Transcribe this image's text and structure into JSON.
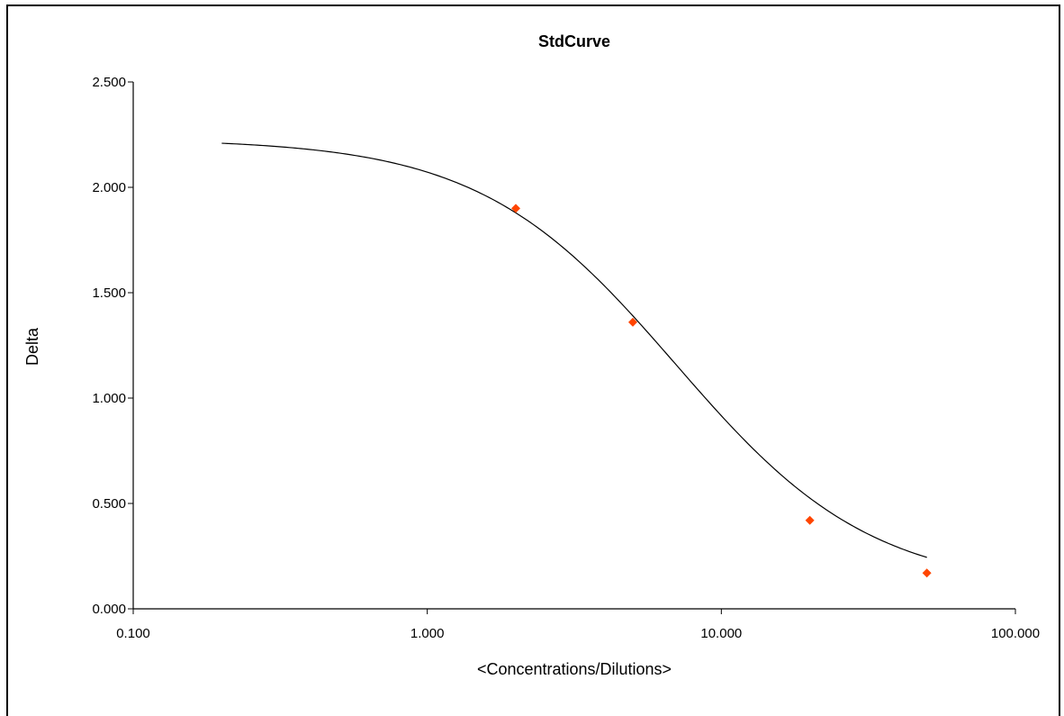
{
  "chart_data": {
    "type": "scatter",
    "title": "StdCurve",
    "xlabel": "<Concentrations/Dilutions>",
    "ylabel": "Delta",
    "x_scale": "log",
    "xlim": [
      0.1,
      100
    ],
    "ylim": [
      0,
      2.5
    ],
    "x_ticks": [
      "0.100",
      "1.000",
      "10.000",
      "100.000"
    ],
    "y_ticks": [
      "0.000",
      "0.500",
      "1.000",
      "1.500",
      "2.000",
      "2.500"
    ],
    "grid": false,
    "legend": "none",
    "fit_curve": {
      "model": "4PL",
      "top": 2.23,
      "bottom": 0.09,
      "ec50": 7.0,
      "hill": 1.3,
      "x_range": [
        0.2,
        50
      ],
      "color": "#000000"
    },
    "points": [
      {
        "x": 2,
        "y": 1.9
      },
      {
        "x": 5,
        "y": 1.36
      },
      {
        "x": 20,
        "y": 0.42
      },
      {
        "x": 50,
        "y": 0.17
      }
    ],
    "point_color": "#ff4500"
  }
}
